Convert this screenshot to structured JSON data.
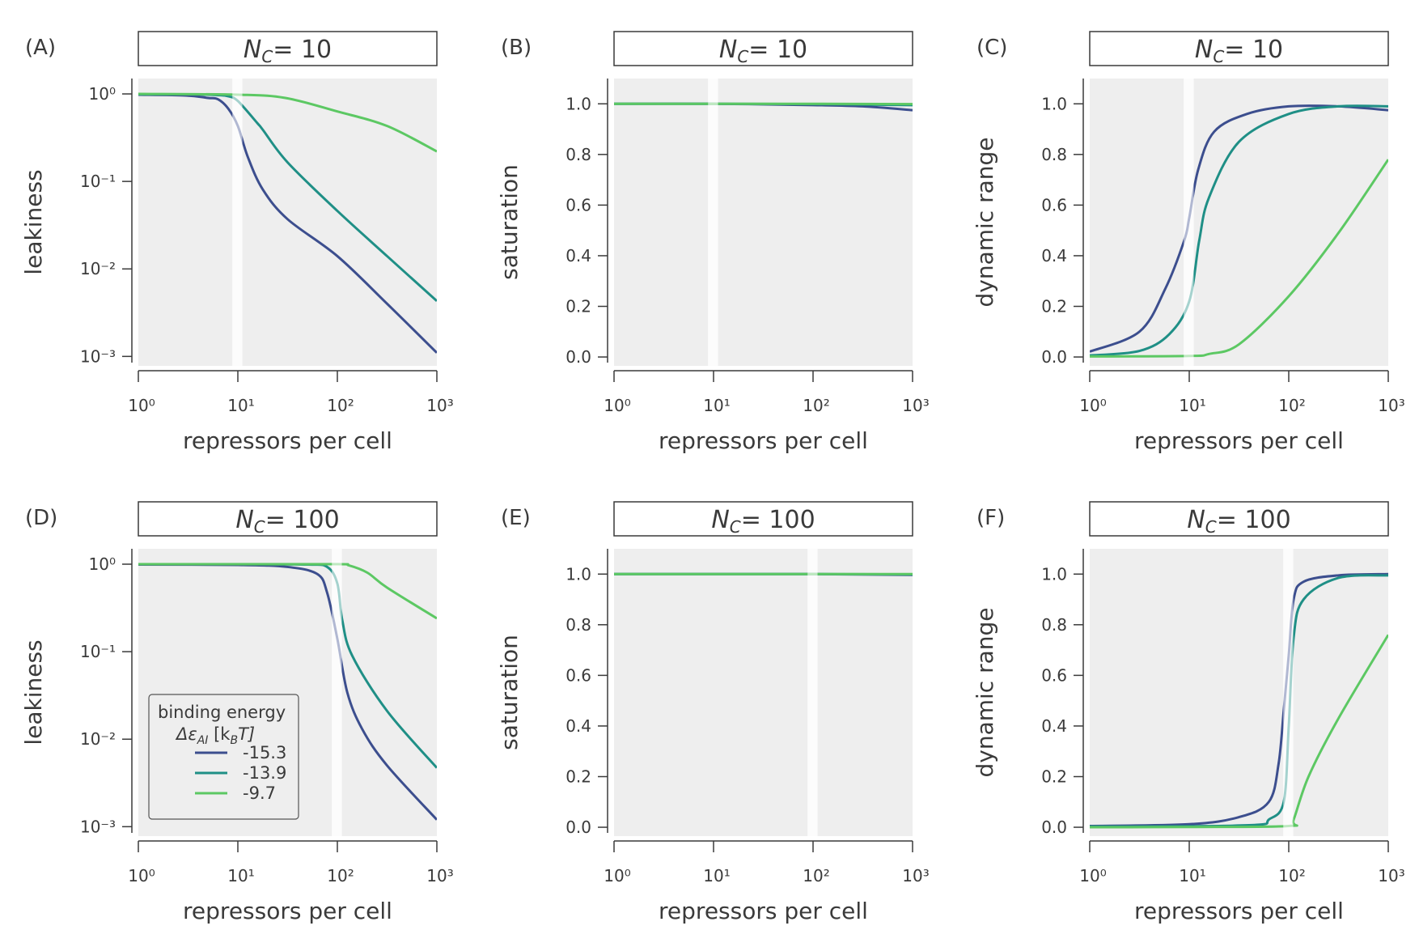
{
  "colors": {
    "blue": "#3C4E8E",
    "teal": "#1F8F86",
    "green": "#5CC863",
    "panel_bg": "#EEEEEE",
    "highlight": "#F8F8F8"
  },
  "legend": {
    "title": "binding energy",
    "symbol": "Δε",
    "symbol_sub": "AI",
    "unit_open": " [k",
    "unit_sub": "B",
    "unit_close": "T]",
    "entries": [
      {
        "label": "-15.3",
        "color": "#3C4E8E"
      },
      {
        "label": "-13.9",
        "color": "#1F8F86"
      },
      {
        "label": "-9.7",
        "color": "#5CC863"
      }
    ]
  },
  "chart_data": [
    {
      "id": "A",
      "label": "(A)",
      "title": {
        "symbol": "N",
        "sub": "C",
        "value": "= 10"
      },
      "type": "line",
      "xlabel": "repressors per cell",
      "ylabel": "leakiness",
      "xscale": "log",
      "yscale": "log",
      "xlim": [
        1,
        1000
      ],
      "ylim": [
        0.00078,
        1.5
      ],
      "highlight_x": 10,
      "x_ticks": [
        1,
        10,
        100,
        1000
      ],
      "x_tick_labels": [
        "10⁰",
        "10¹",
        "10²",
        "10³"
      ],
      "y_ticks": [
        1,
        0.1,
        0.01,
        0.001
      ],
      "y_tick_labels": [
        "10⁰",
        "10⁻¹",
        "10⁻²",
        "10⁻³"
      ],
      "series": [
        {
          "name": "-15.3",
          "color": "#3C4E8E",
          "x": [
            1,
            3,
            5,
            6.3,
            8,
            10,
            12.6,
            17.8,
            31.6,
            100,
            316,
            1000
          ],
          "y": [
            0.98,
            0.96,
            0.9,
            0.87,
            0.68,
            0.43,
            0.19,
            0.081,
            0.037,
            0.014,
            0.004,
            0.0011
          ]
        },
        {
          "name": "-13.9",
          "color": "#1F8F86",
          "x": [
            1,
            3,
            6.3,
            8,
            10,
            15.8,
            17.8,
            31.6,
            100,
            316,
            1000
          ],
          "y": [
            0.99,
            0.99,
            0.97,
            0.94,
            0.83,
            0.46,
            0.39,
            0.165,
            0.046,
            0.014,
            0.0043
          ]
        },
        {
          "name": "-9.7",
          "color": "#5CC863",
          "x": [
            1,
            10,
            30,
            100,
            316,
            1000
          ],
          "y": [
            1.0,
            0.98,
            0.9,
            0.63,
            0.43,
            0.22
          ]
        }
      ]
    },
    {
      "id": "B",
      "label": "(B)",
      "title": {
        "symbol": "N",
        "sub": "C",
        "value": "= 10"
      },
      "type": "line",
      "xlabel": "repressors per cell",
      "ylabel": "saturation",
      "xscale": "log",
      "yscale": "linear",
      "xlim": [
        1,
        1000
      ],
      "ylim": [
        -0.035,
        1.1
      ],
      "highlight_x": 10,
      "x_ticks": [
        1,
        10,
        100,
        1000
      ],
      "x_tick_labels": [
        "10⁰",
        "10¹",
        "10²",
        "10³"
      ],
      "y_ticks": [
        0,
        0.2,
        0.4,
        0.6,
        0.8,
        1.0
      ],
      "y_tick_labels": [
        "0.0",
        "0.2",
        "0.4",
        "0.6",
        "0.8",
        "1.0"
      ],
      "series": [
        {
          "name": "-15.3",
          "color": "#3C4E8E",
          "x": [
            1,
            10,
            100,
            316,
            1000
          ],
          "y": [
            1.0,
            1.0,
            0.995,
            0.99,
            0.975
          ]
        },
        {
          "name": "-13.9",
          "color": "#1F8F86",
          "x": [
            1,
            10,
            100,
            1000
          ],
          "y": [
            1.0,
            1.0,
            0.999,
            0.995
          ]
        },
        {
          "name": "-9.7",
          "color": "#5CC863",
          "x": [
            1,
            10,
            100,
            1000
          ],
          "y": [
            1.0,
            1.0,
            1.0,
            0.999
          ]
        }
      ]
    },
    {
      "id": "C",
      "label": "(C)",
      "title": {
        "symbol": "N",
        "sub": "C",
        "value": "= 10"
      },
      "type": "line",
      "xlabel": "repressors per cell",
      "ylabel": "dynamic range",
      "xscale": "log",
      "yscale": "linear",
      "xlim": [
        1,
        1000
      ],
      "ylim": [
        -0.035,
        1.1
      ],
      "highlight_x": 10,
      "x_ticks": [
        1,
        10,
        100,
        1000
      ],
      "x_tick_labels": [
        "10⁰",
        "10¹",
        "10²",
        "10³"
      ],
      "y_ticks": [
        0,
        0.2,
        0.4,
        0.6,
        0.8,
        1.0
      ],
      "y_tick_labels": [
        "0.0",
        "0.2",
        "0.4",
        "0.6",
        "0.8",
        "1.0"
      ],
      "series": [
        {
          "name": "-15.3",
          "color": "#3C4E8E",
          "x": [
            1,
            3.16,
            5.75,
            8.9,
            10,
            12.3,
            17.8,
            38,
            100,
            316,
            1000
          ],
          "y": [
            0.021,
            0.1,
            0.27,
            0.46,
            0.55,
            0.74,
            0.89,
            0.96,
            0.99,
            0.99,
            0.975
          ]
        },
        {
          "name": "-13.9",
          "color": "#1F8F86",
          "x": [
            1,
            3.16,
            6.3,
            10,
            12.6,
            15.8,
            31.6,
            100,
            316,
            1000
          ],
          "y": [
            0.006,
            0.024,
            0.09,
            0.22,
            0.46,
            0.63,
            0.85,
            0.96,
            0.99,
            0.99
          ]
        },
        {
          "name": "-9.7",
          "color": "#5CC863",
          "x": [
            1,
            10,
            15.8,
            31.6,
            100,
            316,
            1000
          ],
          "y": [
            0.002,
            0.004,
            0.012,
            0.05,
            0.24,
            0.49,
            0.78
          ]
        }
      ]
    },
    {
      "id": "D",
      "label": "(D)",
      "title": {
        "symbol": "N",
        "sub": "C",
        "value": "= 100"
      },
      "type": "line",
      "xlabel": "repressors per cell",
      "ylabel": "leakiness",
      "xscale": "log",
      "yscale": "log",
      "xlim": [
        1,
        1000
      ],
      "ylim": [
        0.00078,
        1.5
      ],
      "highlight_x": 100,
      "x_ticks": [
        1,
        10,
        100,
        1000
      ],
      "x_tick_labels": [
        "10⁰",
        "10¹",
        "10²",
        "10³"
      ],
      "y_ticks": [
        1,
        0.1,
        0.01,
        0.001
      ],
      "y_tick_labels": [
        "10⁰",
        "10⁻¹",
        "10⁻²",
        "10⁻³"
      ],
      "series": [
        {
          "name": "-15.3",
          "color": "#3C4E8E",
          "x": [
            1,
            10,
            31.6,
            63,
            79,
            100,
            126,
            178,
            316,
            1000
          ],
          "y": [
            0.99,
            0.98,
            0.93,
            0.77,
            0.47,
            0.14,
            0.034,
            0.013,
            0.005,
            0.0012
          ]
        },
        {
          "name": "-13.9",
          "color": "#1F8F86",
          "x": [
            1,
            10,
            50,
            79,
            100,
            112,
            141,
            316,
            1000
          ],
          "y": [
            1.0,
            1.0,
            0.99,
            0.93,
            0.6,
            0.23,
            0.09,
            0.021,
            0.0047
          ]
        },
        {
          "name": "-9.7",
          "color": "#5CC863",
          "x": [
            1,
            10,
            100,
            130,
            200,
            316,
            1000
          ],
          "y": [
            1.0,
            1.0,
            1.0,
            0.97,
            0.8,
            0.54,
            0.24
          ]
        }
      ]
    },
    {
      "id": "E",
      "label": "(E)",
      "title": {
        "symbol": "N",
        "sub": "C",
        "value": "= 100"
      },
      "type": "line",
      "xlabel": "repressors per cell",
      "ylabel": "saturation",
      "xscale": "log",
      "yscale": "linear",
      "xlim": [
        1,
        1000
      ],
      "ylim": [
        -0.035,
        1.1
      ],
      "highlight_x": 100,
      "x_ticks": [
        1,
        10,
        100,
        1000
      ],
      "x_tick_labels": [
        "10⁰",
        "10¹",
        "10²",
        "10³"
      ],
      "y_ticks": [
        0,
        0.2,
        0.4,
        0.6,
        0.8,
        1.0
      ],
      "y_tick_labels": [
        "0.0",
        "0.2",
        "0.4",
        "0.6",
        "0.8",
        "1.0"
      ],
      "series": [
        {
          "name": "-15.3",
          "color": "#3C4E8E",
          "x": [
            1,
            100,
            1000
          ],
          "y": [
            1.0,
            1.0,
            0.997
          ]
        },
        {
          "name": "-13.9",
          "color": "#1F8F86",
          "x": [
            1,
            100,
            1000
          ],
          "y": [
            1.0,
            1.0,
            0.999
          ]
        },
        {
          "name": "-9.7",
          "color": "#5CC863",
          "x": [
            1,
            100,
            1000
          ],
          "y": [
            1.0,
            1.0,
            1.0
          ]
        }
      ]
    },
    {
      "id": "F",
      "label": "(F)",
      "title": {
        "symbol": "N",
        "sub": "C",
        "value": "= 100"
      },
      "type": "line",
      "xlabel": "repressors per cell",
      "ylabel": "dynamic range",
      "xscale": "log",
      "yscale": "linear",
      "xlim": [
        1,
        1000
      ],
      "ylim": [
        -0.035,
        1.1
      ],
      "highlight_x": 100,
      "x_ticks": [
        1,
        10,
        100,
        1000
      ],
      "x_tick_labels": [
        "10⁰",
        "10¹",
        "10²",
        "10³"
      ],
      "y_ticks": [
        0,
        0.2,
        0.4,
        0.6,
        0.8,
        1.0
      ],
      "y_tick_labels": [
        "0.0",
        "0.2",
        "0.4",
        "0.6",
        "0.8",
        "1.0"
      ],
      "series": [
        {
          "name": "-15.3",
          "color": "#3C4E8E",
          "x": [
            1,
            10,
            31.6,
            63,
            79,
            89,
            100,
            112,
            141,
            316,
            1000
          ],
          "y": [
            0.005,
            0.012,
            0.04,
            0.1,
            0.25,
            0.46,
            0.68,
            0.9,
            0.97,
            0.995,
            1.0
          ]
        },
        {
          "name": "-13.9",
          "color": "#1F8F86",
          "x": [
            1,
            10,
            50,
            63,
            89,
            100,
            112,
            141,
            316,
            1000
          ],
          "y": [
            0.003,
            0.004,
            0.01,
            0.03,
            0.1,
            0.4,
            0.75,
            0.9,
            0.985,
            0.995
          ]
        },
        {
          "name": "-9.7",
          "color": "#5CC863",
          "x": [
            1,
            10,
            100,
            112,
            158,
            316,
            1000
          ],
          "y": [
            0.0,
            0.001,
            0.005,
            0.03,
            0.2,
            0.43,
            0.76
          ]
        }
      ]
    }
  ]
}
